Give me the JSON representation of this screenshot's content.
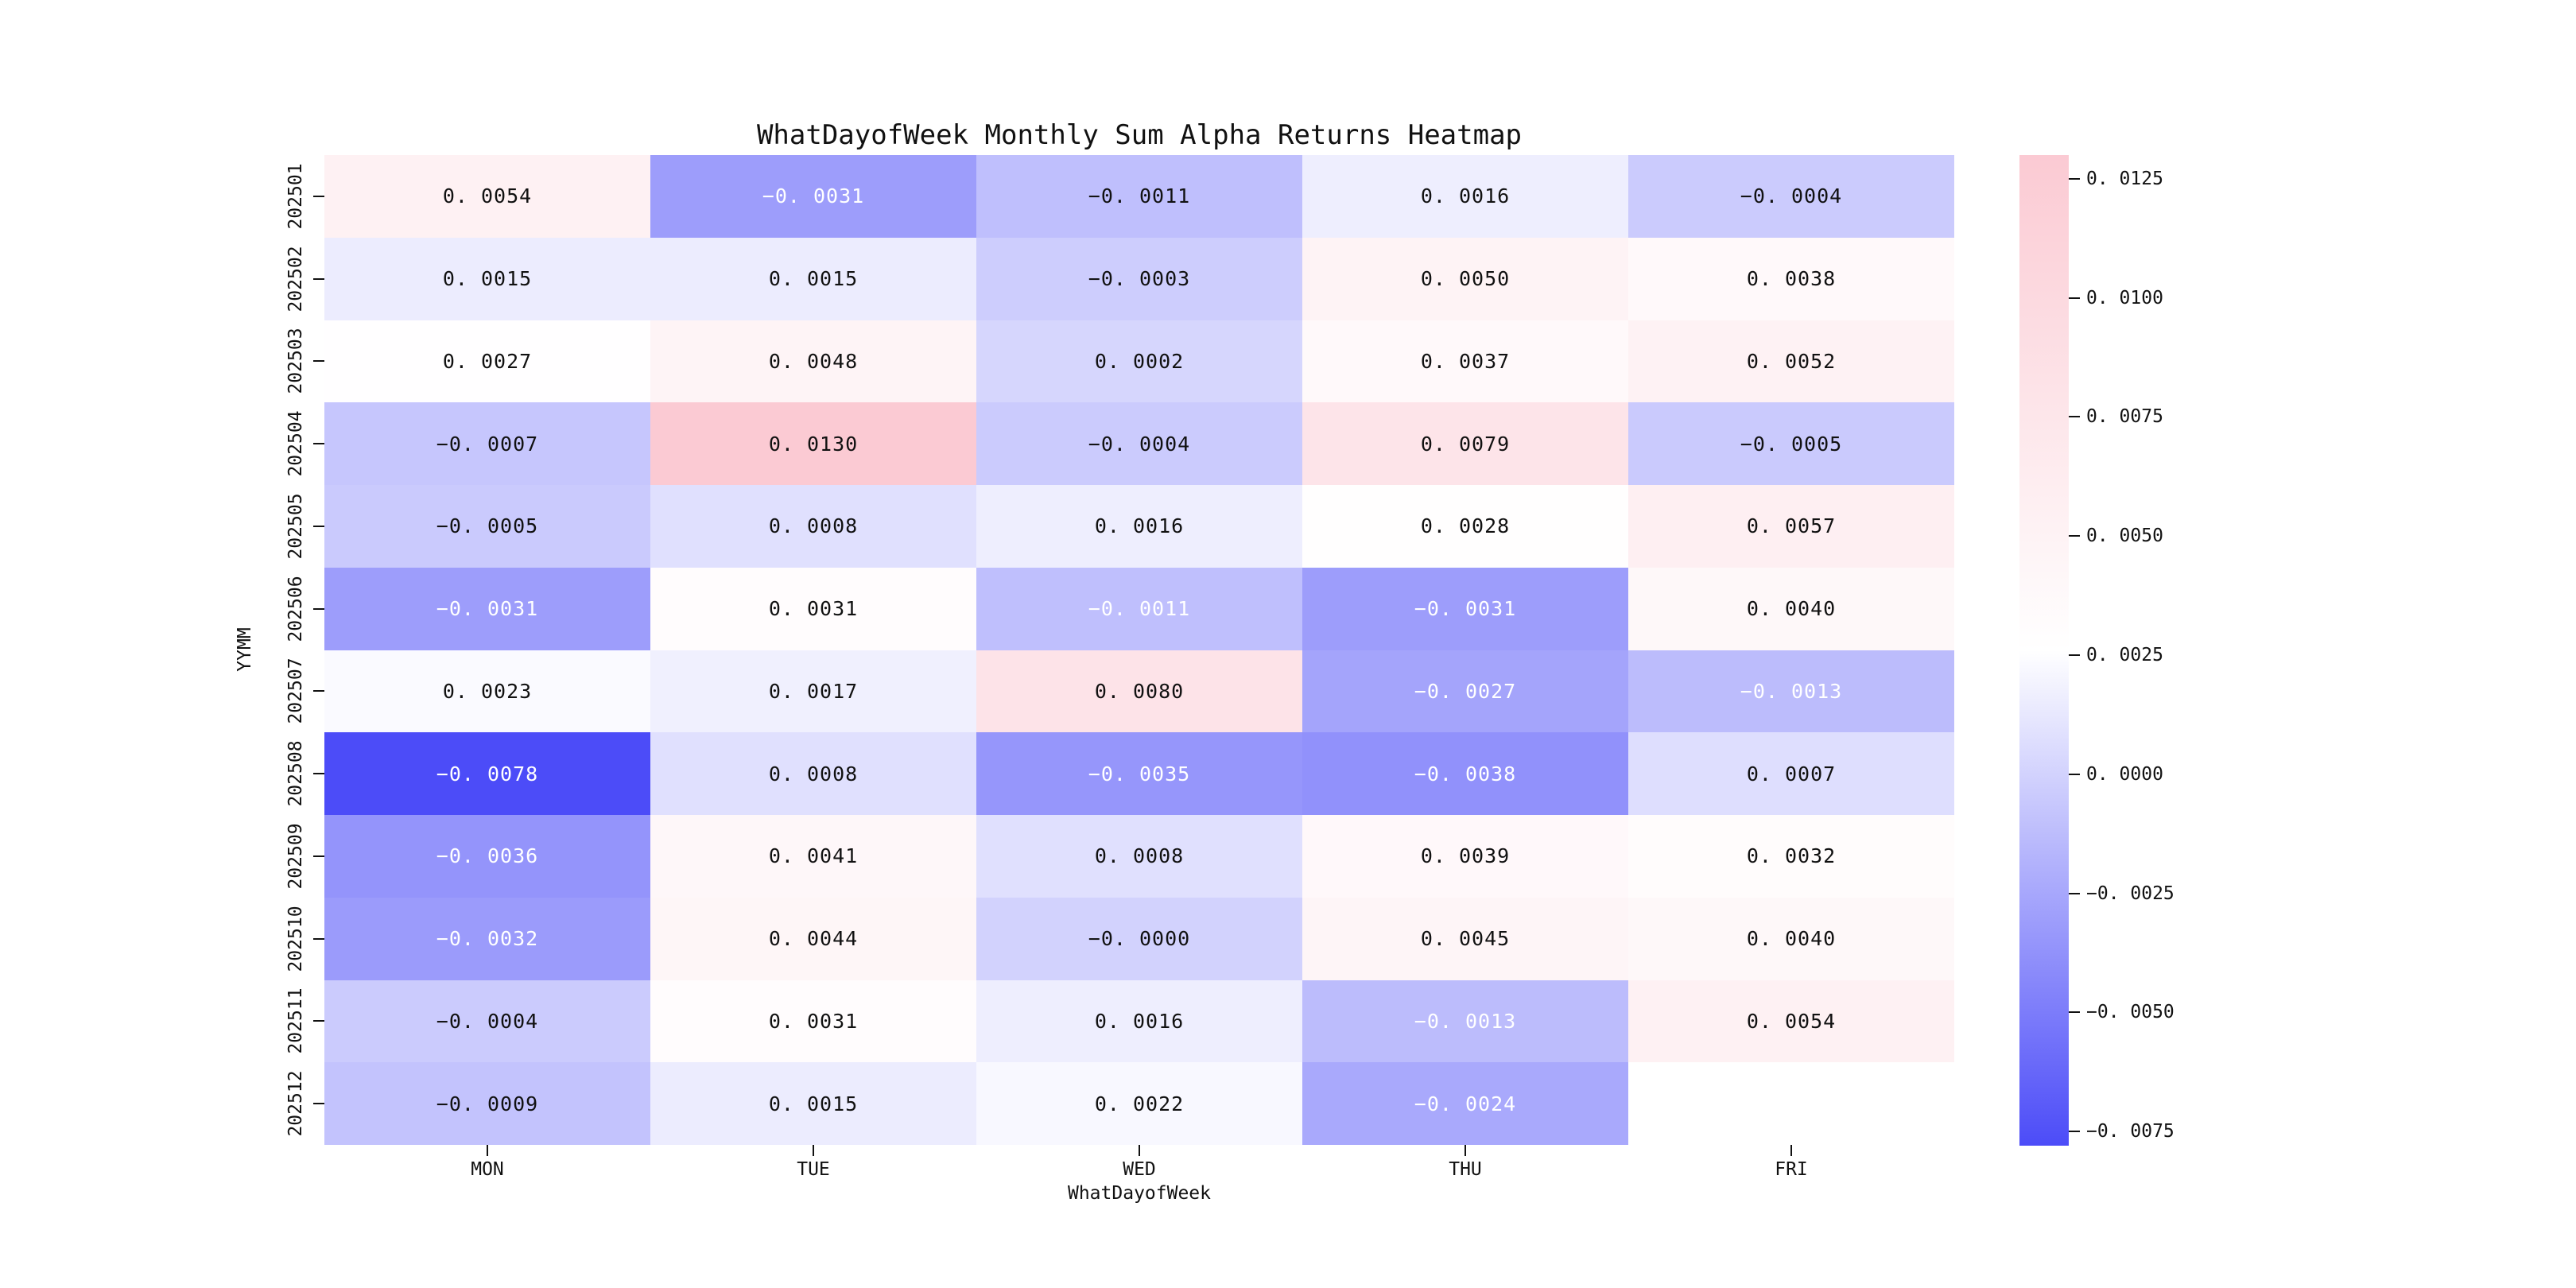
{
  "chart_data": {
    "type": "heatmap",
    "title": "WhatDayofWeek Monthly Sum Alpha Returns Heatmap",
    "xlabel": "WhatDayofWeek",
    "ylabel": "YYMM",
    "columns": [
      "MON",
      "TUE",
      "WED",
      "THU",
      "FRI"
    ],
    "rows": [
      "202501",
      "202502",
      "202503",
      "202504",
      "202505",
      "202506",
      "202507",
      "202508",
      "202509",
      "202510",
      "202511",
      "202512"
    ],
    "values": [
      [
        "0.0054",
        "-0.0031",
        "-0.0011",
        "0.0016",
        "-0.0004"
      ],
      [
        "0.0015",
        "0.0015",
        "-0.0003",
        "0.0050",
        "0.0038"
      ],
      [
        "0.0027",
        "0.0048",
        "0.0002",
        "0.0037",
        "0.0052"
      ],
      [
        "-0.0007",
        "0.0130",
        "-0.0004",
        "0.0079",
        "-0.0005"
      ],
      [
        "-0.0005",
        "0.0008",
        "0.0016",
        "0.0028",
        "0.0057"
      ],
      [
        "-0.0031",
        "0.0031",
        "-0.0011",
        "-0.0031",
        "0.0040"
      ],
      [
        "0.0023",
        "0.0017",
        "0.0080",
        "-0.0027",
        "-0.0013"
      ],
      [
        "-0.0078",
        "0.0008",
        "-0.0035",
        "-0.0038",
        "0.0007"
      ],
      [
        "-0.0036",
        "0.0041",
        "0.0008",
        "0.0039",
        "0.0032"
      ],
      [
        "-0.0032",
        "0.0044",
        "-0.0000",
        "0.0045",
        "0.0040"
      ],
      [
        "-0.0004",
        "0.0031",
        "0.0016",
        "-0.0013",
        "0.0054"
      ],
      [
        "-0.0009",
        "0.0015",
        "0.0022",
        "-0.0024",
        null
      ]
    ],
    "white_text": [
      [
        false,
        true,
        false,
        false,
        false
      ],
      [
        false,
        false,
        false,
        false,
        false
      ],
      [
        false,
        false,
        false,
        false,
        false
      ],
      [
        false,
        false,
        false,
        false,
        false
      ],
      [
        false,
        false,
        false,
        false,
        false
      ],
      [
        true,
        false,
        true,
        true,
        false
      ],
      [
        false,
        false,
        false,
        true,
        true
      ],
      [
        true,
        false,
        true,
        true,
        false
      ],
      [
        true,
        false,
        false,
        false,
        false
      ],
      [
        true,
        false,
        false,
        false,
        false
      ],
      [
        false,
        false,
        false,
        true,
        false
      ],
      [
        false,
        false,
        false,
        true,
        null
      ]
    ],
    "colormap": {
      "vmin": -0.0078,
      "center": 0.0026,
      "vmax": 0.013,
      "min_color": "#4c4cf8",
      "center_color": "#ffffff",
      "max_color": "#fbcad3",
      "annot_dark_color": "#111111",
      "annot_light_color": "#ffffff"
    },
    "colorbar_ticks": [
      "0.0125",
      "0.0100",
      "0.0075",
      "0.0050",
      "0.0025",
      "0.0000",
      "-0.0025",
      "-0.0050",
      "-0.0075"
    ],
    "legend_position": "right",
    "grid": false
  }
}
